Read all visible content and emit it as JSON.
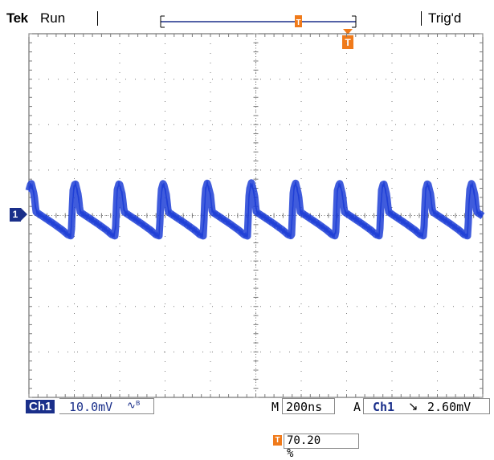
{
  "header": {
    "brand": "Tek",
    "run_status": "Run",
    "trigger_status": "Trig'd"
  },
  "channel": {
    "badge": "Ch1",
    "scale": "10.0mV",
    "coupling_icon": "bandwidth-limit-icon",
    "marker": "1"
  },
  "timebase": {
    "label": "M",
    "value": "200ns"
  },
  "trigger": {
    "mode": "A",
    "source": "Ch1",
    "slope_icon": "falling-edge-icon",
    "level": "2.60mV",
    "marker": "T"
  },
  "horizontal_position": {
    "marker": "T",
    "value": "70.20 %"
  },
  "colors": {
    "trace": "#1f3fd6",
    "accent_orange": "#f07a1a",
    "badge_blue": "#1a2f8a",
    "grid": "#7a7a7a"
  },
  "chart_data": {
    "type": "line",
    "title": "",
    "xlabel": "",
    "ylabel": "",
    "divisions": {
      "x": 10,
      "y": 8
    },
    "x_scale_per_div": "200ns",
    "y_scale_per_div": "10.0mV",
    "series": [
      {
        "cycles": 10.3,
        "amplitude_div": [
          -0.55,
          0.75
        ],
        "description_points_per_cycle": [
          [
            0.0,
            -0.45
          ],
          [
            0.04,
            0.55
          ],
          [
            0.09,
            0.72
          ],
          [
            0.16,
            0.45
          ],
          [
            0.2,
            0.08
          ],
          [
            0.4,
            -0.05
          ],
          [
            0.6,
            -0.18
          ],
          [
            0.8,
            -0.32
          ],
          [
            0.92,
            -0.42
          ],
          [
            1.0,
            -0.45
          ]
        ]
      }
    ]
  }
}
